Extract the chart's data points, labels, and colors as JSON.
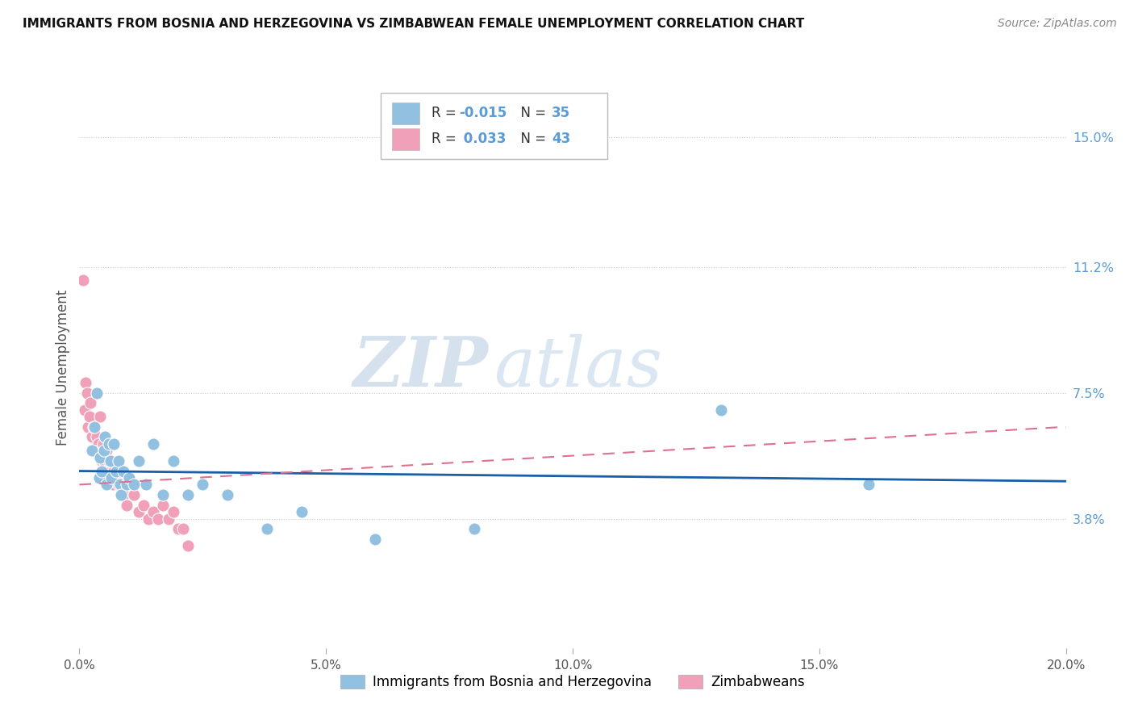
{
  "title": "IMMIGRANTS FROM BOSNIA AND HERZEGOVINA VS ZIMBABWEAN FEMALE UNEMPLOYMENT CORRELATION CHART",
  "source": "Source: ZipAtlas.com",
  "ylabel": "Female Unemployment",
  "ytick_labels": [
    "3.8%",
    "7.5%",
    "11.2%",
    "15.0%"
  ],
  "ytick_values": [
    0.038,
    0.075,
    0.112,
    0.15
  ],
  "xlim": [
    0.0,
    0.2
  ],
  "ylim": [
    0.0,
    0.165
  ],
  "color_bosnia": "#92C0E0",
  "color_zimbabwe": "#F0A0B8",
  "color_trend_bosnia": "#1A5EA8",
  "color_trend_zimbabwe": "#E07090",
  "watermark_zip": "ZIP",
  "watermark_atlas": "atlas",
  "bosnia_x": [
    0.0025,
    0.003,
    0.0035,
    0.004,
    0.0042,
    0.0045,
    0.005,
    0.0052,
    0.0055,
    0.006,
    0.0063,
    0.0065,
    0.007,
    0.0075,
    0.008,
    0.0082,
    0.0085,
    0.009,
    0.0095,
    0.01,
    0.011,
    0.012,
    0.0135,
    0.015,
    0.017,
    0.019,
    0.022,
    0.025,
    0.03,
    0.038,
    0.045,
    0.06,
    0.08,
    0.13,
    0.16
  ],
  "bosnia_y": [
    0.058,
    0.065,
    0.075,
    0.05,
    0.056,
    0.052,
    0.058,
    0.062,
    0.048,
    0.06,
    0.055,
    0.05,
    0.06,
    0.052,
    0.055,
    0.048,
    0.045,
    0.052,
    0.048,
    0.05,
    0.048,
    0.055,
    0.048,
    0.06,
    0.045,
    0.055,
    0.045,
    0.048,
    0.045,
    0.035,
    0.04,
    0.032,
    0.035,
    0.07,
    0.048
  ],
  "zimbabwe_x": [
    0.0008,
    0.001,
    0.0012,
    0.0015,
    0.0018,
    0.002,
    0.0022,
    0.0025,
    0.0028,
    0.003,
    0.0032,
    0.0035,
    0.0038,
    0.004,
    0.0042,
    0.0045,
    0.0048,
    0.005,
    0.0052,
    0.0055,
    0.0058,
    0.006,
    0.0065,
    0.0068,
    0.007,
    0.0075,
    0.008,
    0.0085,
    0.009,
    0.0095,
    0.01,
    0.011,
    0.012,
    0.013,
    0.014,
    0.015,
    0.016,
    0.017,
    0.018,
    0.019,
    0.02,
    0.021,
    0.022
  ],
  "zimbabwe_y": [
    0.108,
    0.07,
    0.078,
    0.075,
    0.065,
    0.068,
    0.072,
    0.062,
    0.065,
    0.065,
    0.058,
    0.062,
    0.06,
    0.058,
    0.068,
    0.055,
    0.06,
    0.055,
    0.052,
    0.058,
    0.052,
    0.055,
    0.05,
    0.048,
    0.052,
    0.05,
    0.048,
    0.048,
    0.045,
    0.042,
    0.05,
    0.045,
    0.04,
    0.042,
    0.038,
    0.04,
    0.038,
    0.042,
    0.038,
    0.04,
    0.035,
    0.035,
    0.03
  ],
  "trend_bosnia_x0": 0.0,
  "trend_bosnia_y0": 0.052,
  "trend_bosnia_x1": 0.2,
  "trend_bosnia_y1": 0.049,
  "trend_zimbabwe_x0": 0.0,
  "trend_zimbabwe_y0": 0.048,
  "trend_zimbabwe_x1": 0.2,
  "trend_zimbabwe_y1": 0.065
}
